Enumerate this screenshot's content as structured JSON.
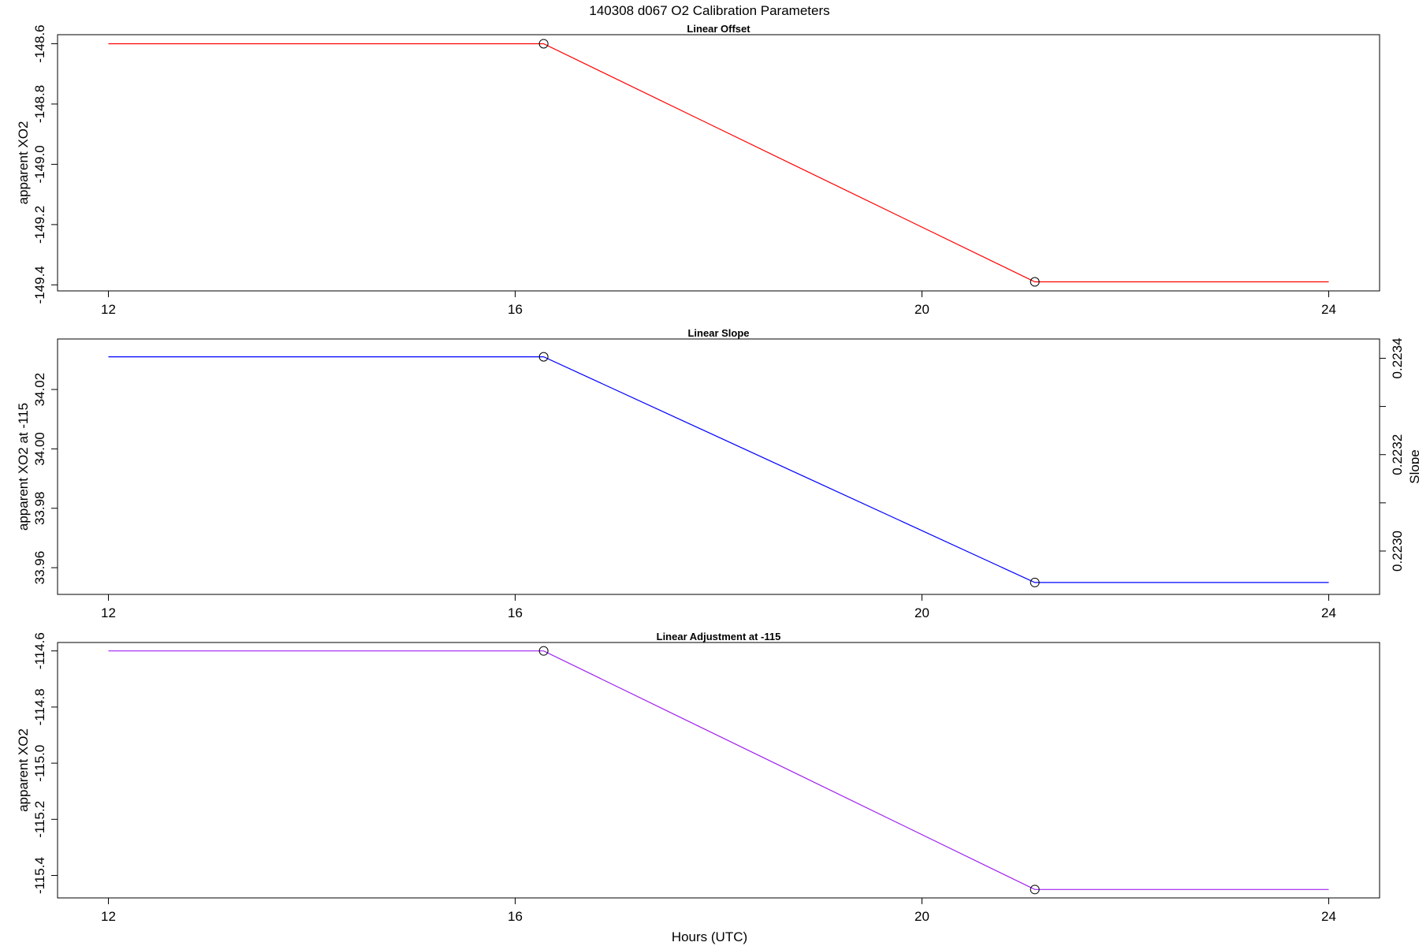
{
  "main_title": "140308   d067   O2 Calibration Parameters",
  "x_axis_label": "Hours (UTC)",
  "chart_data": [
    {
      "type": "line",
      "title": "Linear Offset",
      "xlabel": "",
      "ylabel": "apparent XO2",
      "xlim": [
        11.5,
        24.5
      ],
      "ylim": [
        -149.42,
        -148.57
      ],
      "x_ticks": [
        12,
        16,
        20,
        24
      ],
      "y_ticks": [
        -149.4,
        -149.2,
        -149.0,
        -148.8,
        -148.6
      ],
      "y_tick_labels": [
        "-149.4",
        "-149.2",
        "-149.0",
        "-148.8",
        "-148.6"
      ],
      "color": "#ff0000",
      "x": [
        12,
        16.28,
        21.11,
        24
      ],
      "y": [
        -148.6,
        -148.6,
        -149.39,
        -149.39
      ],
      "markers": [
        {
          "x": 16.28,
          "y": -148.6
        },
        {
          "x": 21.11,
          "y": -149.39
        }
      ]
    },
    {
      "type": "line",
      "title": "Linear Slope",
      "xlabel": "",
      "ylabel": "apparent XO2 at -115",
      "xlim": [
        11.5,
        24.5
      ],
      "ylim": [
        33.951,
        34.037
      ],
      "x_ticks": [
        12,
        16,
        20,
        24
      ],
      "y_ticks": [
        33.96,
        33.98,
        34.0,
        34.02
      ],
      "y_tick_labels": [
        "33.96",
        "33.98",
        "34.00",
        "34.02"
      ],
      "right_axis": {
        "label": "Slope",
        "ticks": [
          0.223,
          0.2232,
          0.2234
        ],
        "tick_labels": [
          "0.2230",
          "0.2232",
          "0.2234"
        ],
        "minor_ticks": [
          0.2231,
          0.2233
        ],
        "ylim": [
          0.22291,
          0.22344
        ]
      },
      "color": "#0000ff",
      "x": [
        12,
        16.28,
        21.11,
        24
      ],
      "y": [
        34.031,
        34.031,
        33.955,
        33.955
      ],
      "markers": [
        {
          "x": 16.28,
          "y": 34.031
        },
        {
          "x": 21.11,
          "y": 33.955
        }
      ]
    },
    {
      "type": "line",
      "title": "Linear Adjustment at -115",
      "xlabel": "Hours (UTC)",
      "ylabel": "apparent XO2",
      "xlim": [
        11.5,
        24.5
      ],
      "ylim": [
        -115.48,
        -114.57
      ],
      "x_ticks": [
        12,
        16,
        20,
        24
      ],
      "y_ticks": [
        -115.4,
        -115.2,
        -115.0,
        -114.8,
        -114.6
      ],
      "y_tick_labels": [
        "-115.4",
        "-115.2",
        "-115.0",
        "-114.8",
        "-114.6"
      ],
      "color": "#a020f0",
      "x": [
        12,
        16.28,
        21.11,
        24
      ],
      "y": [
        -114.6,
        -114.6,
        -115.45,
        -115.45
      ],
      "markers": [
        {
          "x": 16.28,
          "y": -114.6
        },
        {
          "x": 21.11,
          "y": -115.45
        }
      ]
    }
  ]
}
